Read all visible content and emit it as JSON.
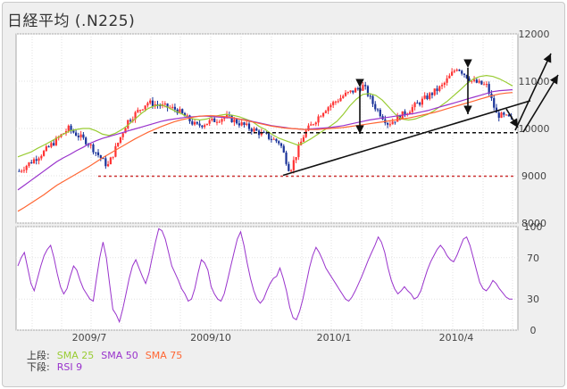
{
  "title": "日経平均 (.N225)",
  "legend": {
    "upper_label": "上段:",
    "lower_label": "下段:",
    "upper_items": [
      {
        "name": "SMA 25",
        "color": "#99cc33"
      },
      {
        "name": "SMA 50",
        "color": "#9933cc"
      },
      {
        "name": "SMA 75",
        "color": "#ff6633"
      }
    ],
    "lower_items": [
      {
        "name": "RSI 9",
        "color": "#9933cc"
      }
    ]
  },
  "chart_data": [
    {
      "type": "candlestick",
      "title": "",
      "ylim": [
        8000,
        12000
      ],
      "yticks": [
        8000,
        9000,
        10000,
        11000,
        12000
      ],
      "xticks": [
        "2009/7",
        "2009/10",
        "2010/1",
        "2010/4"
      ],
      "grid": true,
      "up_color": "#ff3333",
      "down_color": "#1a3399",
      "series": [
        {
          "name": "SMA 25",
          "color": "#99cc33",
          "values": [
            9400,
            9450,
            9500,
            9580,
            9650,
            9720,
            9800,
            9880,
            9950,
            9980,
            10000,
            10000,
            9950,
            9880,
            9850,
            9900,
            9980,
            10080,
            10200,
            10320,
            10420,
            10480,
            10500,
            10450,
            10380,
            10320,
            10250,
            10200,
            10180,
            10200,
            10250,
            10280,
            10300,
            10280,
            10250,
            10200,
            10150,
            10050,
            9980,
            9880,
            9800,
            9750,
            9700,
            9650,
            9700,
            9780,
            9870,
            9960,
            10050,
            10150,
            10300,
            10480,
            10620,
            10720,
            10740,
            10700,
            10600,
            10450,
            10300,
            10200,
            10180,
            10200,
            10250,
            10300,
            10380,
            10480,
            10580,
            10700,
            10820,
            10950,
            11050,
            11100,
            11120,
            11100,
            11050,
            10980,
            10900
          ]
        },
        {
          "name": "SMA 50",
          "color": "#9933cc",
          "values": [
            8700,
            8800,
            8900,
            9000,
            9100,
            9200,
            9300,
            9380,
            9450,
            9530,
            9600,
            9680,
            9740,
            9790,
            9830,
            9870,
            9910,
            9950,
            9990,
            10030,
            10070,
            10110,
            10150,
            10180,
            10200,
            10220,
            10240,
            10250,
            10260,
            10260,
            10250,
            10240,
            10230,
            10220,
            10200,
            10180,
            10150,
            10120,
            10090,
            10060,
            10040,
            10020,
            10000,
            9990,
            9980,
            9990,
            10000,
            10010,
            10020,
            10040,
            10060,
            10090,
            10120,
            10150,
            10180,
            10200,
            10220,
            10240,
            10260,
            10280,
            10300,
            10320,
            10350,
            10380,
            10420,
            10460,
            10500,
            10540,
            10580,
            10620,
            10660,
            10700,
            10740,
            10780,
            10800,
            10810,
            10820
          ]
        },
        {
          "name": "SMA 75",
          "color": "#ff6633",
          "values": [
            8250,
            8330,
            8420,
            8510,
            8600,
            8700,
            8800,
            8880,
            8960,
            9040,
            9120,
            9200,
            9290,
            9380,
            9460,
            9540,
            9620,
            9700,
            9780,
            9850,
            9920,
            9980,
            10040,
            10090,
            10140,
            10180,
            10210,
            10240,
            10260,
            10270,
            10270,
            10260,
            10250,
            10230,
            10200,
            10170,
            10140,
            10110,
            10080,
            10050,
            10030,
            10010,
            10000,
            9990,
            9980,
            9980,
            9980,
            9990,
            10000,
            10010,
            10020,
            10040,
            10060,
            10080,
            10100,
            10120,
            10140,
            10160,
            10180,
            10200,
            10220,
            10250,
            10280,
            10310,
            10340,
            10380,
            10420,
            10460,
            10500,
            10540,
            10580,
            10620,
            10660,
            10700,
            10730,
            10750,
            10760
          ]
        }
      ],
      "annotations": {
        "support_dotted": [
          9910,
          9910
        ],
        "support_red_dotted": 8990,
        "trend_line": [
          9010,
          10530
        ]
      }
    },
    {
      "type": "line",
      "title": "",
      "ylim": [
        0,
        100
      ],
      "yticks": [
        0,
        30,
        70,
        100
      ],
      "xticks": [
        "2009/7",
        "2009/10",
        "2010/1",
        "2010/4"
      ],
      "grid": true,
      "series": [
        {
          "name": "RSI 9",
          "color": "#9933cc",
          "values": [
            62,
            70,
            75,
            60,
            45,
            38,
            50,
            62,
            72,
            78,
            82,
            70,
            55,
            42,
            35,
            40,
            52,
            62,
            58,
            48,
            40,
            35,
            30,
            28,
            50,
            70,
            85,
            70,
            45,
            20,
            15,
            8,
            20,
            35,
            50,
            62,
            68,
            60,
            52,
            45,
            55,
            70,
            85,
            98,
            96,
            88,
            75,
            62,
            55,
            48,
            40,
            35,
            28,
            30,
            40,
            55,
            68,
            65,
            58,
            42,
            35,
            30,
            28,
            35,
            48,
            62,
            75,
            88,
            95,
            82,
            65,
            50,
            38,
            30,
            26,
            30,
            38,
            45,
            50,
            52,
            60,
            50,
            38,
            22,
            12,
            10,
            18,
            30,
            45,
            60,
            72,
            80,
            75,
            68,
            60,
            55,
            50,
            45,
            40,
            35,
            30,
            28,
            32,
            38,
            45,
            52,
            60,
            68,
            75,
            82,
            90,
            85,
            75,
            60,
            48,
            40,
            35,
            38,
            42,
            38,
            35,
            30,
            32,
            38,
            48,
            58,
            66,
            72,
            78,
            82,
            78,
            72,
            68,
            66,
            72,
            80,
            88,
            90,
            82,
            70,
            58,
            46,
            40,
            38,
            42,
            48,
            45,
            40,
            36,
            32,
            30,
            30
          ]
        }
      ]
    }
  ]
}
